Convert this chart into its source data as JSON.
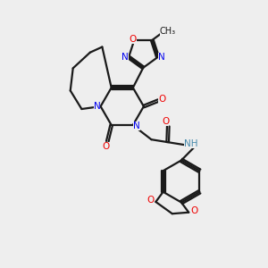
{
  "bg_color": "#eeeeee",
  "bond_color": "#1a1a1a",
  "N_color": "#0000ee",
  "O_color": "#ee0000",
  "NH_color": "#4488aa",
  "line_width": 1.6,
  "dbo": 0.055,
  "fig_w": 3.0,
  "fig_h": 3.0,
  "dpi": 100,
  "xlim": [
    0,
    10
  ],
  "ylim": [
    0,
    10
  ]
}
